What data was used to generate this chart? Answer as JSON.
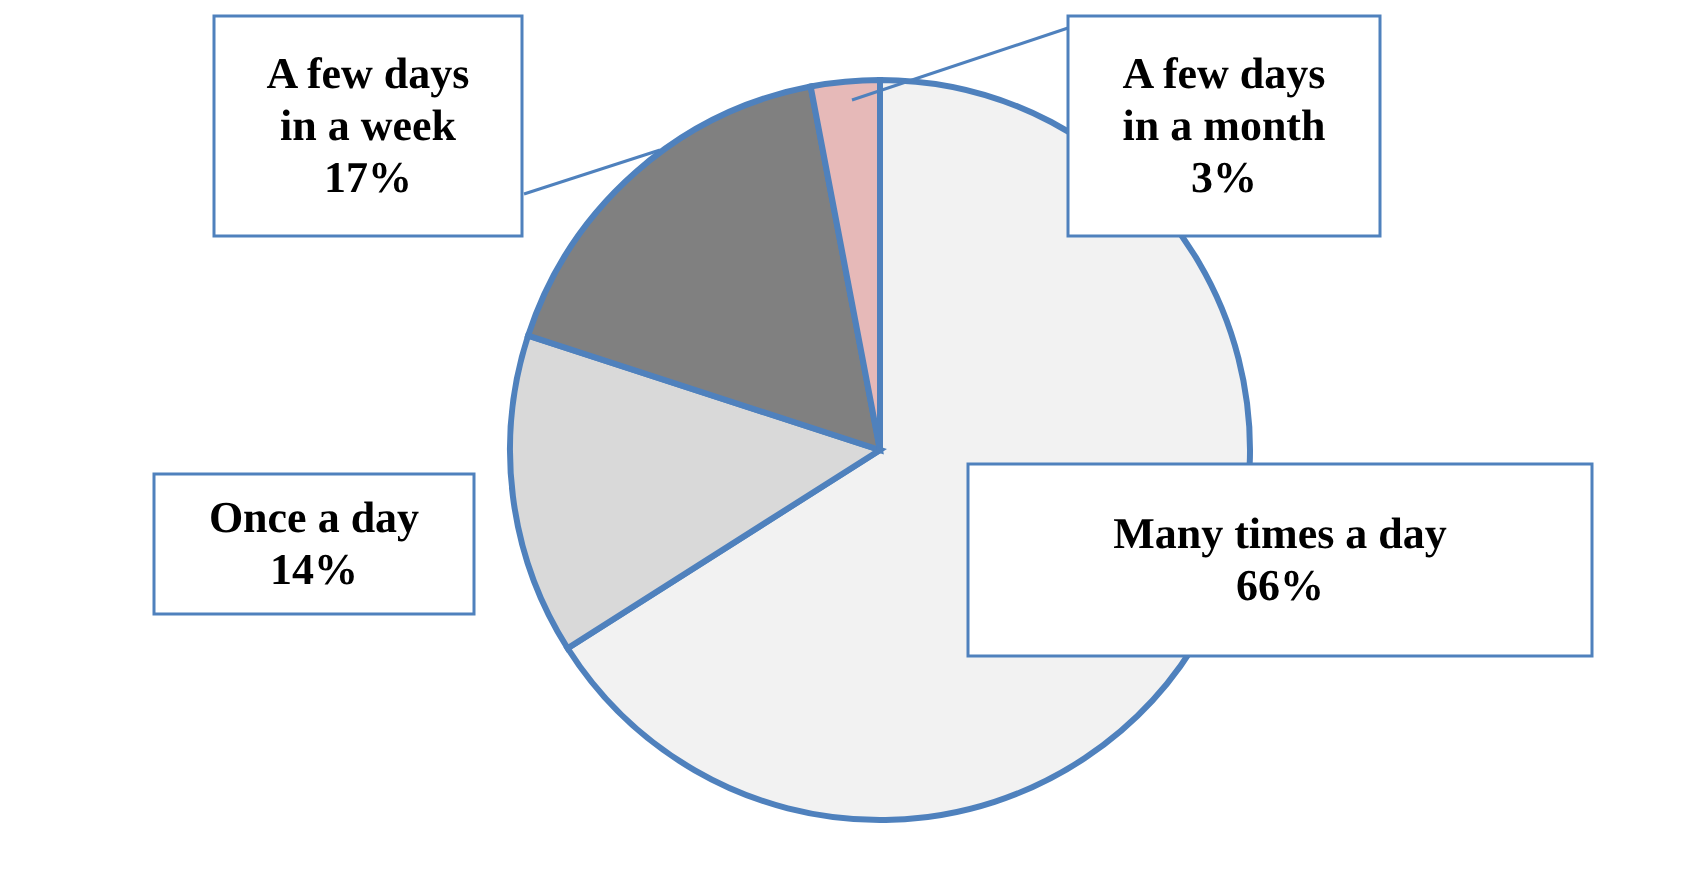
{
  "chart_data": {
    "type": "pie",
    "categories": [
      "Many times a day",
      "Once a day",
      "A few days in a week",
      "A few days in a month"
    ],
    "values": [
      66,
      14,
      17,
      3
    ],
    "value_labels": [
      "66%",
      "14%",
      "17%",
      "3%"
    ],
    "colors": [
      "#f2f2f2",
      "#d9d9d9",
      "#808080",
      "#e6b9b8"
    ]
  }
}
